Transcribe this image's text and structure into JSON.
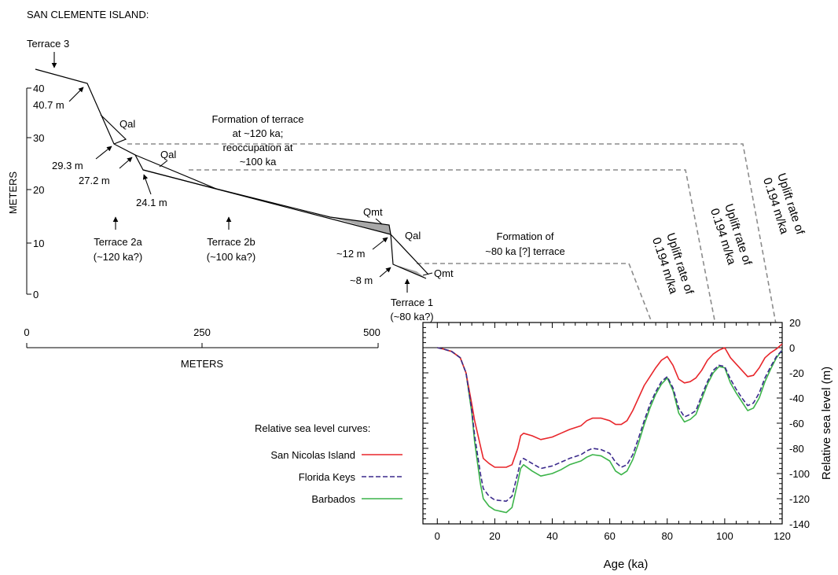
{
  "title": "SAN CLEMENTE ISLAND:",
  "profile": {
    "y_axis": {
      "title": "METERS",
      "ticks": [
        0,
        10,
        20,
        30,
        40
      ]
    },
    "x_axis": {
      "title": "METERS",
      "ticks": [
        0,
        250,
        500
      ]
    },
    "elevation_labels": [
      "40.7 m",
      "29.3 m",
      "27.2 m",
      "24.1 m",
      "~12 m",
      "~8 m"
    ],
    "deposit_labels": [
      "Qal",
      "Qal",
      "Qal",
      "Qmt",
      "Qmt"
    ],
    "terraces": [
      {
        "name": "Terrace 3",
        "age": ""
      },
      {
        "name": "Terrace 2a",
        "age": "(~120 ka?)"
      },
      {
        "name": "Terrace 2b",
        "age": "(~100 ka?)"
      },
      {
        "name": "Terrace 1",
        "age": "(~80 ka?)"
      }
    ],
    "notes": {
      "n120": [
        "Formation of terrace",
        "at ~120 ka;",
        "reoccupation at",
        "~100 ka"
      ],
      "n80": [
        "Formation of",
        "~80 ka [?] terrace"
      ]
    },
    "uplift_labels": [
      [
        "Uplift rate of",
        "0.194 m/ka"
      ],
      [
        "Uplift rate of",
        "0.194 m/ka"
      ],
      [
        "Uplift rate of",
        "0.194 m/ka"
      ]
    ]
  },
  "legend": {
    "title": "Relative sea level curves:",
    "entries": [
      {
        "name": "San Nicolas Island",
        "color": "#e8262b",
        "style": "solid"
      },
      {
        "name": "Florida Keys",
        "color": "#3b2a8c",
        "style": "dashed"
      },
      {
        "name": "Barbados",
        "color": "#3cb44a",
        "style": "solid"
      }
    ]
  },
  "chart_data": {
    "type": "line",
    "xlabel": "Age (ka)",
    "ylabel": "Relative sea level (m)",
    "xlim": [
      -5,
      120
    ],
    "ylim": [
      -140,
      20
    ],
    "x_ticks": [
      0,
      20,
      40,
      60,
      80,
      100,
      120
    ],
    "y_ticks": [
      20,
      0,
      -20,
      -40,
      -60,
      -80,
      -100,
      -120,
      -140
    ],
    "reference_line": 0,
    "series": [
      {
        "name": "San Nicolas Island",
        "color": "#e8262b",
        "points": [
          [
            0,
            0
          ],
          [
            2,
            -1
          ],
          [
            5,
            -3
          ],
          [
            8,
            -8
          ],
          [
            10,
            -20
          ],
          [
            12,
            -45
          ],
          [
            13,
            -58
          ],
          [
            15,
            -78
          ],
          [
            16,
            -88
          ],
          [
            18,
            -92
          ],
          [
            20,
            -95
          ],
          [
            24,
            -95
          ],
          [
            26,
            -93
          ],
          [
            28,
            -80
          ],
          [
            29,
            -70
          ],
          [
            30,
            -68
          ],
          [
            33,
            -70
          ],
          [
            36,
            -73
          ],
          [
            40,
            -71
          ],
          [
            43,
            -68
          ],
          [
            46,
            -65
          ],
          [
            50,
            -62
          ],
          [
            52,
            -58
          ],
          [
            54,
            -56
          ],
          [
            57,
            -56
          ],
          [
            60,
            -58
          ],
          [
            62,
            -61
          ],
          [
            64,
            -61
          ],
          [
            66,
            -58
          ],
          [
            68,
            -50
          ],
          [
            70,
            -40
          ],
          [
            72,
            -30
          ],
          [
            74,
            -23
          ],
          [
            76,
            -16
          ],
          [
            78,
            -10
          ],
          [
            80,
            -7
          ],
          [
            82,
            -14
          ],
          [
            84,
            -25
          ],
          [
            86,
            -28
          ],
          [
            88,
            -27
          ],
          [
            90,
            -24
          ],
          [
            92,
            -18
          ],
          [
            94,
            -10
          ],
          [
            96,
            -5
          ],
          [
            98,
            -2
          ],
          [
            100,
            0
          ],
          [
            102,
            -8
          ],
          [
            104,
            -13
          ],
          [
            106,
            -18
          ],
          [
            108,
            -23
          ],
          [
            110,
            -22
          ],
          [
            112,
            -16
          ],
          [
            114,
            -8
          ],
          [
            116,
            -4
          ],
          [
            118,
            -1
          ],
          [
            120,
            3
          ]
        ]
      },
      {
        "name": "Florida Keys",
        "color": "#3b2a8c",
        "points": [
          [
            0,
            0
          ],
          [
            2,
            -1
          ],
          [
            5,
            -3
          ],
          [
            8,
            -8
          ],
          [
            10,
            -20
          ],
          [
            12,
            -50
          ],
          [
            13,
            -70
          ],
          [
            15,
            -100
          ],
          [
            16,
            -112
          ],
          [
            18,
            -118
          ],
          [
            20,
            -121
          ],
          [
            24,
            -122
          ],
          [
            26,
            -118
          ],
          [
            28,
            -100
          ],
          [
            29,
            -90
          ],
          [
            30,
            -88
          ],
          [
            33,
            -92
          ],
          [
            36,
            -96
          ],
          [
            40,
            -94
          ],
          [
            43,
            -91
          ],
          [
            46,
            -88
          ],
          [
            50,
            -85
          ],
          [
            52,
            -82
          ],
          [
            54,
            -80
          ],
          [
            57,
            -81
          ],
          [
            60,
            -84
          ],
          [
            62,
            -91
          ],
          [
            64,
            -95
          ],
          [
            66,
            -93
          ],
          [
            68,
            -85
          ],
          [
            70,
            -72
          ],
          [
            72,
            -58
          ],
          [
            74,
            -45
          ],
          [
            76,
            -35
          ],
          [
            78,
            -27
          ],
          [
            80,
            -23
          ],
          [
            82,
            -32
          ],
          [
            84,
            -48
          ],
          [
            86,
            -55
          ],
          [
            88,
            -53
          ],
          [
            90,
            -50
          ],
          [
            92,
            -38
          ],
          [
            94,
            -27
          ],
          [
            96,
            -18
          ],
          [
            98,
            -14
          ],
          [
            100,
            -15
          ],
          [
            102,
            -25
          ],
          [
            104,
            -33
          ],
          [
            106,
            -40
          ],
          [
            108,
            -46
          ],
          [
            110,
            -44
          ],
          [
            112,
            -36
          ],
          [
            114,
            -24
          ],
          [
            116,
            -15
          ],
          [
            118,
            -7
          ],
          [
            120,
            -2
          ]
        ]
      },
      {
        "name": "Barbados",
        "color": "#3cb44a",
        "points": [
          [
            0,
            0
          ],
          [
            2,
            -1
          ],
          [
            5,
            -3
          ],
          [
            8,
            -8
          ],
          [
            10,
            -20
          ],
          [
            12,
            -52
          ],
          [
            13,
            -75
          ],
          [
            15,
            -108
          ],
          [
            16,
            -120
          ],
          [
            18,
            -126
          ],
          [
            20,
            -129
          ],
          [
            24,
            -131
          ],
          [
            26,
            -127
          ],
          [
            28,
            -107
          ],
          [
            29,
            -96
          ],
          [
            30,
            -93
          ],
          [
            33,
            -98
          ],
          [
            36,
            -102
          ],
          [
            40,
            -100
          ],
          [
            43,
            -97
          ],
          [
            46,
            -93
          ],
          [
            50,
            -90
          ],
          [
            52,
            -87
          ],
          [
            54,
            -85
          ],
          [
            57,
            -86
          ],
          [
            60,
            -90
          ],
          [
            62,
            -98
          ],
          [
            64,
            -101
          ],
          [
            66,
            -98
          ],
          [
            68,
            -89
          ],
          [
            70,
            -76
          ],
          [
            72,
            -61
          ],
          [
            74,
            -48
          ],
          [
            76,
            -37
          ],
          [
            78,
            -29
          ],
          [
            80,
            -24
          ],
          [
            82,
            -34
          ],
          [
            84,
            -52
          ],
          [
            86,
            -59
          ],
          [
            88,
            -57
          ],
          [
            90,
            -53
          ],
          [
            92,
            -41
          ],
          [
            94,
            -29
          ],
          [
            96,
            -20
          ],
          [
            98,
            -15
          ],
          [
            100,
            -16
          ],
          [
            102,
            -28
          ],
          [
            104,
            -36
          ],
          [
            106,
            -43
          ],
          [
            108,
            -50
          ],
          [
            110,
            -48
          ],
          [
            112,
            -40
          ],
          [
            114,
            -27
          ],
          [
            116,
            -17
          ],
          [
            118,
            -8
          ],
          [
            120,
            -2
          ]
        ]
      }
    ]
  }
}
